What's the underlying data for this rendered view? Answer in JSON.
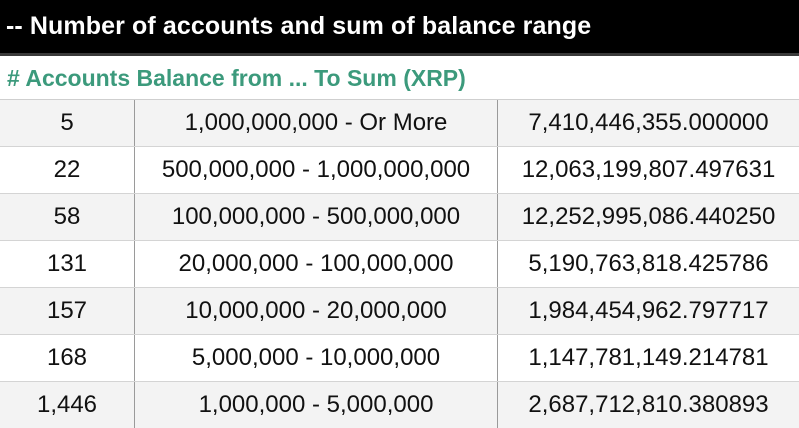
{
  "title": "-- Number of accounts and sum of balance range",
  "subheader": "# Accounts Balance from ... To Sum (XRP)",
  "colors": {
    "title_background": "#000000",
    "title_text": "#ffffff",
    "subheader_text": "#3c9a7c",
    "alt_row_background": "#f3f3f3"
  },
  "rows": [
    {
      "accounts": "5",
      "range": "1,000,000,000 - Or More",
      "sum": "7,410,446,355.000000"
    },
    {
      "accounts": "22",
      "range": "500,000,000 - 1,000,000,000",
      "sum": "12,063,199,807.497631"
    },
    {
      "accounts": "58",
      "range": "100,000,000 - 500,000,000",
      "sum": "12,252,995,086.440250"
    },
    {
      "accounts": "131",
      "range": "20,000,000 - 100,000,000",
      "sum": "5,190,763,818.425786"
    },
    {
      "accounts": "157",
      "range": "10,000,000 - 20,000,000",
      "sum": "1,984,454,962.797717"
    },
    {
      "accounts": "168",
      "range": "5,000,000 - 10,000,000",
      "sum": "1,147,781,149.214781"
    },
    {
      "accounts": "1,446",
      "range": "1,000,000 - 5,000,000",
      "sum": "2,687,712,810.380893"
    }
  ]
}
